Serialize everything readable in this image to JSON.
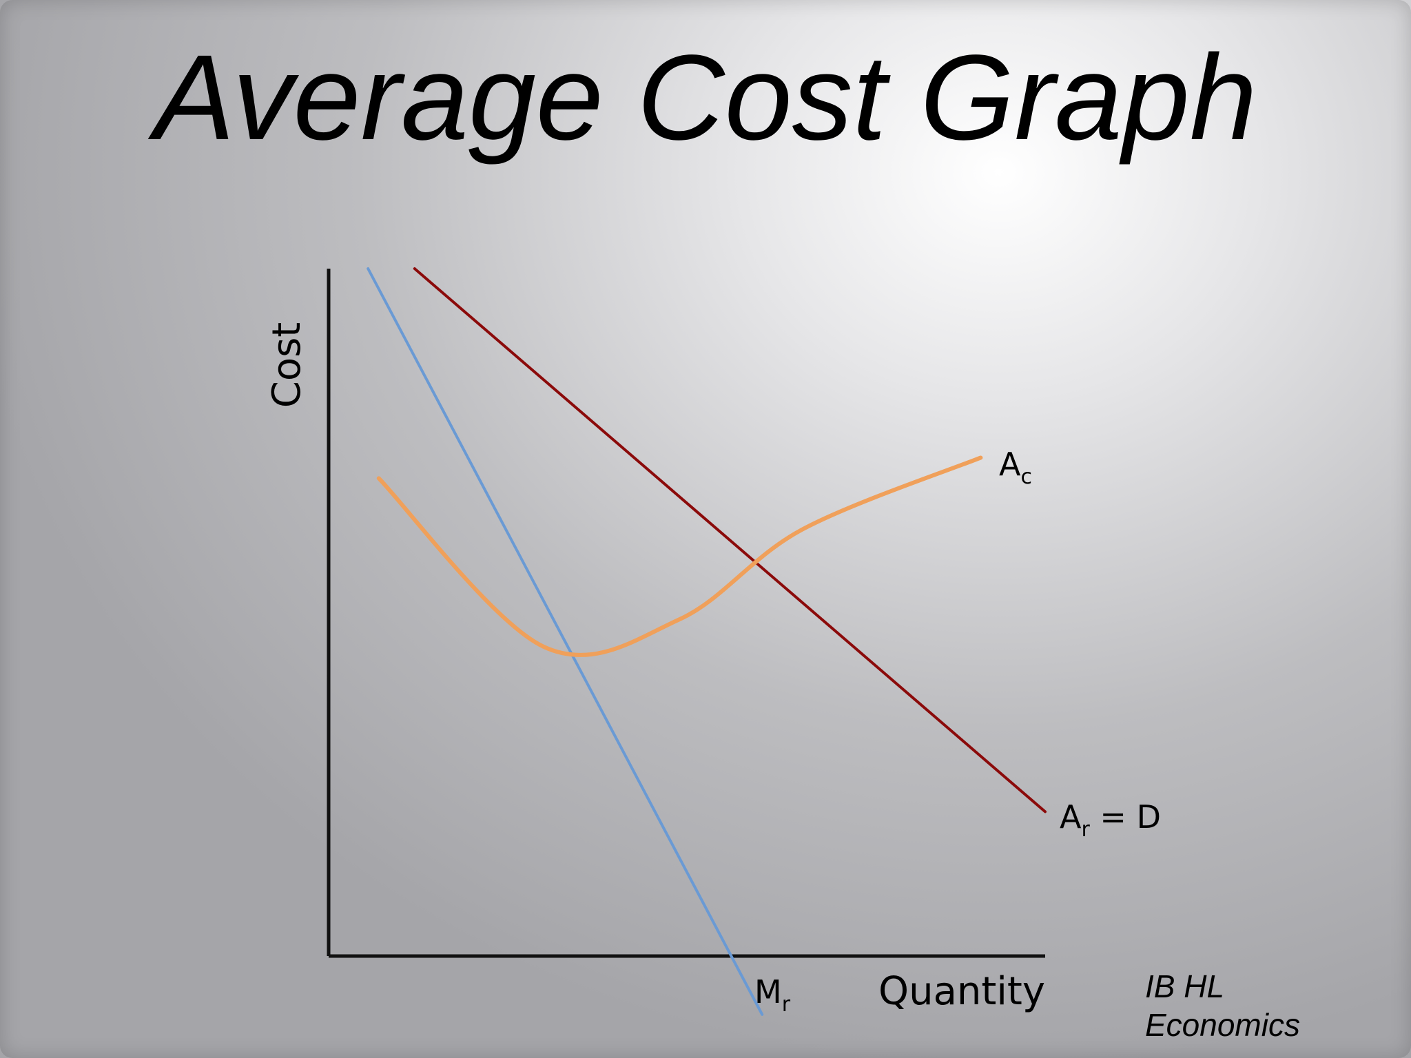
{
  "slide": {
    "title": "Average Cost Graph",
    "footer_line1": "IB HL",
    "footer_line2": "Economics"
  },
  "chart_data": {
    "type": "line",
    "xlabel": "Quantity",
    "ylabel": "Cost",
    "xlim": [
      0,
      100
    ],
    "ylim": [
      0,
      100
    ],
    "grid": false,
    "series": [
      {
        "label": "Mr",
        "label_main": "M",
        "label_sub": "r",
        "color": "#6a9ad4",
        "shape": "straight",
        "points": [
          [
            5.5,
            100
          ],
          [
            60.5,
            -8.5
          ]
        ]
      },
      {
        "label": "Ar = D",
        "label_main": "A",
        "label_sub": "r",
        "label_suffix": " = D",
        "color": "#8b0a0a",
        "shape": "straight",
        "points": [
          [
            12,
            100
          ],
          [
            100,
            21
          ]
        ]
      },
      {
        "label": "Ac",
        "label_main": "A",
        "label_sub": "c",
        "color": "#f0a05a",
        "shape": "u-curve",
        "points": [
          [
            7,
            69.5
          ],
          [
            30,
            45
          ],
          [
            49,
            49
          ],
          [
            66,
            62
          ],
          [
            91,
            72.5
          ]
        ]
      }
    ]
  }
}
